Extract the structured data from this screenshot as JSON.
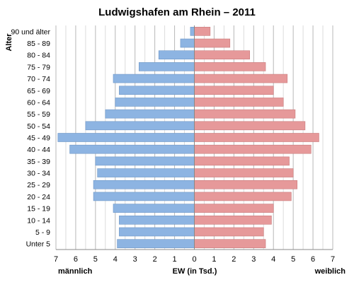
{
  "chart_data": {
    "type": "bar",
    "title": "Ludwigshafen am Rhein – 2011",
    "ylabel": "Alter",
    "xlabel": "EW (in Tsd.)",
    "left_label": "männlich",
    "right_label": "weiblich",
    "xlim": [
      -7,
      7
    ],
    "xticks": [
      -7,
      -6,
      -5,
      -4,
      -3,
      -2,
      -1,
      0,
      1,
      2,
      3,
      4,
      5,
      6,
      7
    ],
    "tick_labels": [
      "7",
      "6",
      "5",
      "4",
      "3",
      "2",
      "1",
      "0",
      "1",
      "2",
      "3",
      "4",
      "5",
      "6",
      "7"
    ],
    "grid": true,
    "categories": [
      "90 und älter",
      "85 - 89",
      "80 - 84",
      "75 - 79",
      "70 - 74",
      "65 - 69",
      "60 - 64",
      "55 - 59",
      "50 - 54",
      "45 - 49",
      "40 - 44",
      "35 - 39",
      "30 - 34",
      "25 - 29",
      "20 - 24",
      "15 - 19",
      "10 - 14",
      "5 - 9",
      "Unter 5"
    ],
    "series": [
      {
        "name": "männlich",
        "color": "#8DB4E2",
        "values": [
          0.2,
          0.7,
          1.8,
          2.8,
          4.1,
          3.8,
          4.0,
          4.5,
          5.5,
          6.9,
          6.3,
          5.0,
          4.9,
          5.1,
          5.1,
          4.1,
          3.8,
          3.8,
          3.9
        ]
      },
      {
        "name": "weiblich",
        "color": "#E6999A",
        "values": [
          0.8,
          1.8,
          2.8,
          3.6,
          4.7,
          4.0,
          4.5,
          5.1,
          5.6,
          6.3,
          5.9,
          4.8,
          5.0,
          5.2,
          4.9,
          4.0,
          3.9,
          3.5,
          3.6
        ]
      }
    ]
  }
}
